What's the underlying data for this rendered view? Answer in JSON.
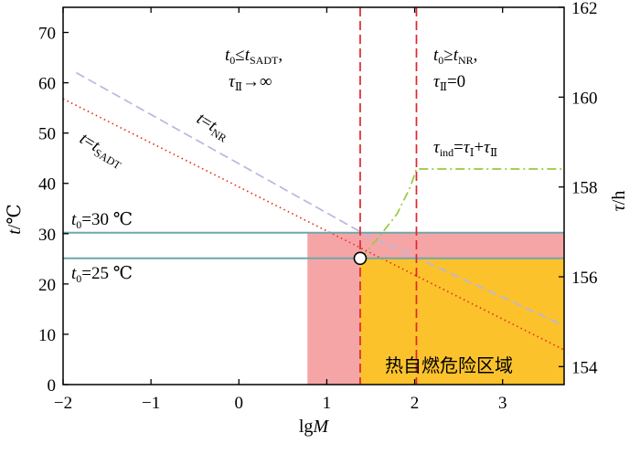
{
  "chart_data": {
    "type": "line",
    "x_axis": {
      "label_main": "lg",
      "label_var": "M",
      "range": [
        -2,
        3.7
      ],
      "ticks": [
        -2,
        -1,
        0,
        1,
        2,
        3
      ],
      "tick_labels": [
        "−2",
        "−1",
        "0",
        "1",
        "2",
        "3"
      ]
    },
    "y_left": {
      "label_var": "t",
      "label_unit": "/℃",
      "range": [
        0,
        75
      ],
      "ticks": [
        0,
        10,
        20,
        30,
        40,
        50,
        60,
        70
      ],
      "tick_labels": [
        "0",
        "10",
        "20",
        "30",
        "40",
        "50",
        "60",
        "70"
      ]
    },
    "y_right": {
      "label_var": "τ",
      "label_unit": "/h",
      "range": [
        153.6,
        162
      ],
      "ticks": [
        154,
        156,
        158,
        160,
        162
      ],
      "tick_labels": [
        "154",
        "156",
        "158",
        "160",
        "162"
      ]
    },
    "series": [
      {
        "id": "t_nr",
        "axis": "left",
        "style": "dashed",
        "color": "#b9b7e0",
        "points": [
          [
            -1.85,
            62
          ],
          [
            1.38,
            30.4
          ],
          [
            3.7,
            11.7
          ]
        ]
      },
      {
        "id": "t_sadt",
        "axis": "left",
        "style": "dotted",
        "color": "#e8301e",
        "points": [
          [
            -2,
            56.8
          ],
          [
            3.7,
            6.9
          ]
        ]
      },
      {
        "id": "tau_ind",
        "axis": "right",
        "style": "dashdot",
        "color": "#9cc83b",
        "points": [
          [
            1.38,
            156.4
          ],
          [
            1.6,
            156.9
          ],
          [
            1.8,
            157.4
          ],
          [
            1.95,
            158.0
          ],
          [
            2.02,
            158.4
          ],
          [
            3.7,
            158.4
          ]
        ]
      },
      {
        "id": "t0_30",
        "axis": "left",
        "style": "solid",
        "color": "#6fa7ab",
        "points": [
          [
            -2,
            30.2
          ],
          [
            3.7,
            30.2
          ]
        ]
      },
      {
        "id": "t0_25",
        "axis": "left",
        "style": "solid",
        "color": "#6fa7ab",
        "points": [
          [
            -2,
            25.1
          ],
          [
            3.7,
            25.1
          ]
        ]
      }
    ],
    "vertical_lines": [
      {
        "x": 1.38,
        "color": "#e0262d"
      },
      {
        "x": 2.02,
        "color": "#e0262d"
      }
    ],
    "regions": [
      {
        "x": [
          0.78,
          3.7
        ],
        "y": [
          0,
          30.2
        ],
        "color": "#f6a5a7"
      },
      {
        "x": [
          1.38,
          3.7
        ],
        "y": [
          0,
          25.1
        ],
        "color": "#fbc22c"
      }
    ],
    "marker": {
      "x": 1.38,
      "y": 25.1
    },
    "annotations": {
      "cond_left_line1": "t₀≤t_SADT,",
      "cond_left_line2": "τ_Ⅱ→∞",
      "cond_right_line1": "t₀≥t_NR,",
      "cond_right_line2": "τ_Ⅱ=0",
      "tau_ind_label": "τ_ind=τ_Ⅰ+τ_Ⅱ",
      "t_nr_label": "t=t_NR",
      "t_sadt_label": "t=t_SADT",
      "t0_30_label": "t₀=30 ℃",
      "t0_25_label": "t₀=25 ℃"
    },
    "region_label": "热自燃危险区域"
  }
}
